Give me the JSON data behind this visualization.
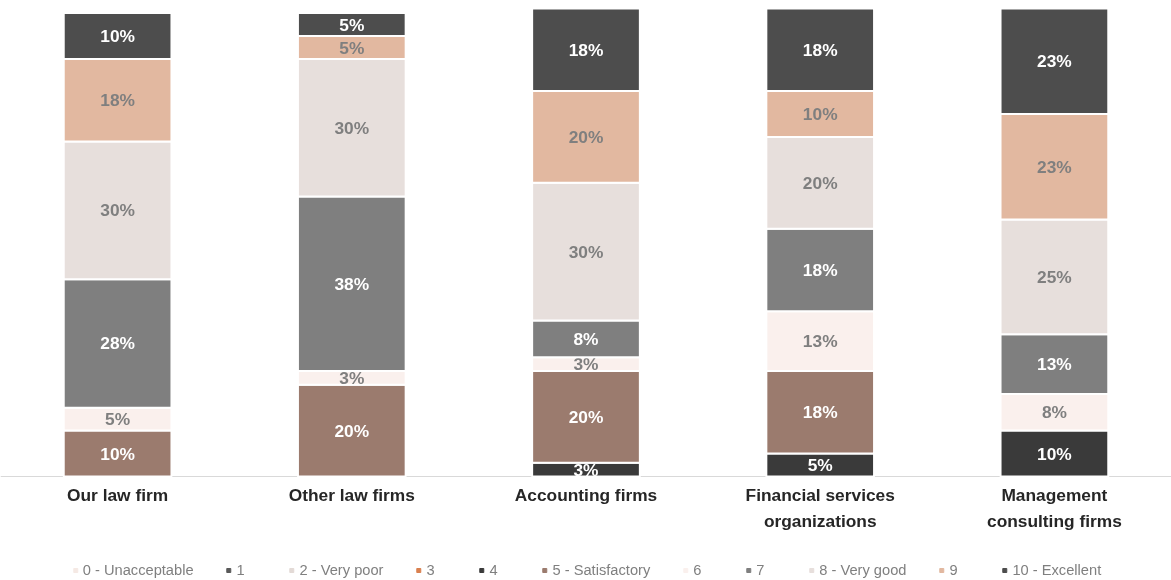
{
  "chart_data": {
    "type": "bar",
    "stacked": true,
    "legend": "bottom",
    "categories": [
      "Our law firm",
      "Other law firms",
      "Accounting firms",
      "Financial services organizations",
      "Management consulting firms"
    ],
    "series": [
      {
        "name": "0 - Unacceptable",
        "color": "#f5e9e4",
        "values": [
          null,
          null,
          null,
          null,
          null
        ],
        "value_labels": [
          null,
          null,
          null,
          null,
          null
        ]
      },
      {
        "name": "1",
        "color": "#595959",
        "values": [
          null,
          null,
          null,
          null,
          null
        ],
        "value_labels": [
          null,
          null,
          null,
          null,
          null
        ]
      },
      {
        "name": "2 - Very poor",
        "color": "#e3dad6",
        "values": [
          null,
          null,
          null,
          null,
          null
        ],
        "value_labels": [
          null,
          null,
          null,
          null,
          null
        ]
      },
      {
        "name": "3",
        "color": "#d9804f",
        "values": [
          null,
          null,
          null,
          null,
          null
        ],
        "value_labels": [
          null,
          null,
          null,
          null,
          null
        ]
      },
      {
        "name": "4",
        "color": "#3a3a3a",
        "values": [
          null,
          null,
          3,
          5,
          10
        ],
        "value_labels": [
          null,
          null,
          "3%",
          "5%",
          "10%"
        ]
      },
      {
        "name": "5 - Satisfactory",
        "color": "#9b7b6e",
        "values": [
          10,
          20,
          20,
          18,
          null
        ],
        "value_labels": [
          "10%",
          "20%",
          "20%",
          "18%",
          null
        ]
      },
      {
        "name": "6",
        "color": "#faf0ed",
        "values": [
          5,
          3,
          3,
          13,
          8
        ],
        "value_labels": [
          "5%",
          "3%",
          "3%",
          "13%",
          "8%"
        ]
      },
      {
        "name": "7",
        "color": "#7f7f7f",
        "values": [
          28,
          38,
          8,
          18,
          13
        ],
        "value_labels": [
          "28%",
          "38%",
          "8%",
          "18%",
          "13%"
        ]
      },
      {
        "name": "8 - Very good",
        "color": "#e7dfdc",
        "values": [
          30,
          30,
          30,
          20,
          25
        ],
        "value_labels": [
          "30%",
          "30%",
          "30%",
          "20%",
          "25%"
        ]
      },
      {
        "name": "9",
        "color": "#e2b8a0",
        "values": [
          18,
          5,
          20,
          10,
          23
        ],
        "value_labels": [
          "18%",
          "5%",
          "20%",
          "10%",
          "23%"
        ]
      },
      {
        "name": "10 - Excellent",
        "color": "#4d4d4d",
        "values": [
          10,
          5,
          18,
          18,
          23
        ],
        "value_labels": [
          "10%",
          "5%",
          "18%",
          "18%",
          "23%"
        ]
      }
    ]
  }
}
